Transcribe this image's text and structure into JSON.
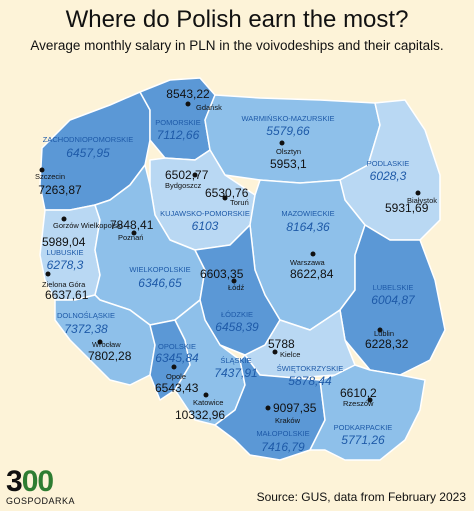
{
  "title": "Where do Polish earn the most?",
  "subtitle": "Average monthly salary in PLN in the voivodeships and their capitals.",
  "source": "Source: GUS, data from February 2023",
  "logo": {
    "digits_a": "3",
    "digits_b": "00",
    "text": "GOSPODARKA"
  },
  "colors": {
    "background": "#fdf3d8",
    "region_light": "#b9d8f3",
    "region_mid": "#8ec0ea",
    "region_dark": "#5b98d6",
    "label_blue": "#1e5aa8",
    "border": "#ffffff"
  },
  "voivodeships": [
    {
      "name": "ZACHODNIOPOMORSKIE",
      "value": "6457,95"
    },
    {
      "name": "POMORSKIE",
      "value": "7112,66"
    },
    {
      "name": "WARMIŃSKO-MAZURSKIE",
      "value": "5579,66"
    },
    {
      "name": "PODLASKIE",
      "value": "6028,3"
    },
    {
      "name": "KUJAWSKO-POMORSKIE",
      "value": "6103"
    },
    {
      "name": "MAZOWIECKIE",
      "value": "8164,36"
    },
    {
      "name": "LUBUSKIE",
      "value": "6278,3"
    },
    {
      "name": "WIELKOPOLSKIE",
      "value": "6346,65"
    },
    {
      "name": "ŁÓDZKIE",
      "value": "6458,39"
    },
    {
      "name": "LUBELSKIE",
      "value": "6004,87"
    },
    {
      "name": "DOLNOŚLĄSKIE",
      "value": "7372,38"
    },
    {
      "name": "OPOLSKIE",
      "value": "6345,84"
    },
    {
      "name": "ŚLĄSKIE",
      "value": "7437,91"
    },
    {
      "name": "ŚWIĘTOKRZYSKIE",
      "value": "5878,44"
    },
    {
      "name": "MAŁOPOLSKIE",
      "value": "7416,79"
    },
    {
      "name": "PODKARPACKIE",
      "value": "5771,26"
    }
  ],
  "capitals": [
    {
      "name": "Gdańsk",
      "value": "8543,22"
    },
    {
      "name": "Szczecin",
      "value": "7263,87"
    },
    {
      "name": "Olsztyn",
      "value": "5953,1"
    },
    {
      "name": "Bydgoszcz",
      "value": "6502,77"
    },
    {
      "name": "Toruń",
      "value": "6530,76"
    },
    {
      "name": "Białystok",
      "value": "5931,69"
    },
    {
      "name": "Gorzów Wielkopolski",
      "value": "5989,04"
    },
    {
      "name": "Poznań",
      "value": "7848,41"
    },
    {
      "name": "Warszawa",
      "value": "8622,84"
    },
    {
      "name": "Łódź",
      "value": "6603,35"
    },
    {
      "name": "Zielona Góra",
      "value": "6637,61"
    },
    {
      "name": "Lublin",
      "value": "6228,32"
    },
    {
      "name": "Wrocław",
      "value": "7802,28"
    },
    {
      "name": "Kielce",
      "value": "5788"
    },
    {
      "name": "Opole",
      "value": "6543,43"
    },
    {
      "name": "Rzeszów",
      "value": "6610,2"
    },
    {
      "name": "Katowice",
      "value": "10332,96"
    },
    {
      "name": "Kraków",
      "value": "9097,35"
    }
  ]
}
